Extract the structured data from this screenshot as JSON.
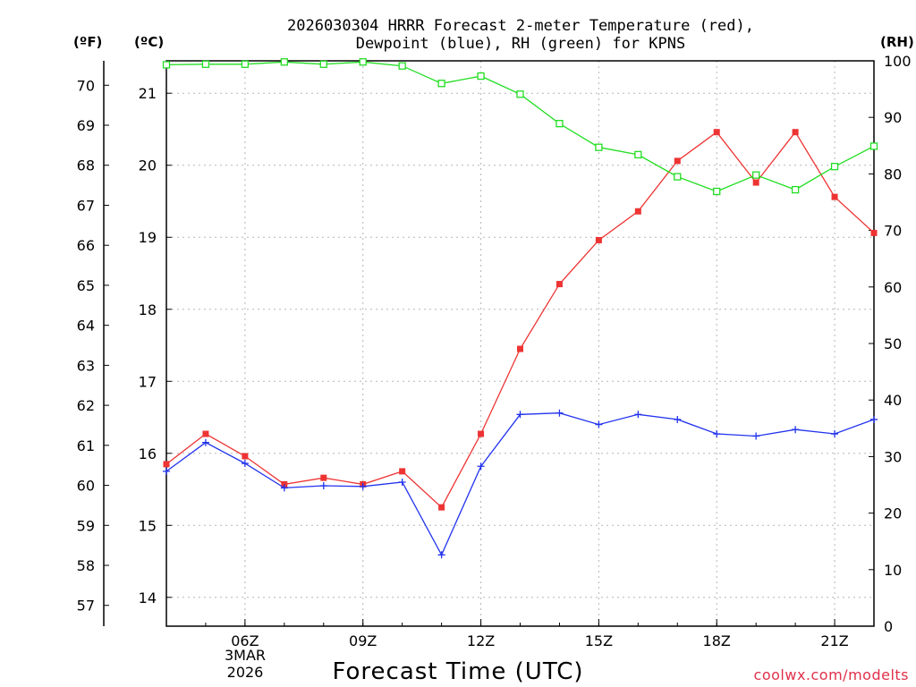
{
  "title_line1": "2026030304 HRRR Forecast 2-meter Temperature (red),",
  "title_line2": "Dewpoint (blue), RH (green) for KPNS",
  "axis_unit_f": "(ºF)",
  "axis_unit_c": "(ºC)",
  "axis_unit_rh": "(RH)",
  "xlabel": "Forecast Time (UTC)",
  "credit": "coolwx.com/modelts",
  "date_label_line1": "3MAR",
  "date_label_line2": "2026",
  "colors": {
    "temperature": "#ee3333",
    "dewpoint": "#2233ee",
    "rh": "#22dd22",
    "grid": "#b5b5b5"
  },
  "chart_data": {
    "type": "line",
    "title": "2026030304 HRRR Forecast 2-meter Temperature (red), Dewpoint (blue), RH (green) for KPNS",
    "xlabel": "Forecast Time (UTC)",
    "x_hours_utc": [
      4,
      5,
      6,
      7,
      8,
      9,
      10,
      11,
      12,
      13,
      14,
      15,
      16,
      17,
      18,
      19,
      20,
      21,
      22
    ],
    "xlim": [
      4,
      22
    ],
    "x_ticks": [
      6,
      9,
      12,
      15,
      18,
      21
    ],
    "x_tick_labels": [
      "06Z",
      "09Z",
      "12Z",
      "15Z",
      "18Z",
      "21Z"
    ],
    "y_left_f_ticks": [
      57,
      58,
      59,
      60,
      61,
      62,
      63,
      64,
      65,
      66,
      67,
      68,
      69,
      70
    ],
    "y_left_c_ticks": [
      14,
      15,
      16,
      17,
      18,
      19,
      20,
      21
    ],
    "y_left_c_range": [
      13.6,
      21.45
    ],
    "y_right_rh_ticks": [
      0,
      10,
      20,
      30,
      40,
      50,
      60,
      70,
      80,
      90,
      100
    ],
    "y_right_rh_range": [
      0,
      100
    ],
    "grid": true,
    "series": [
      {
        "name": "Temperature",
        "unit": "C",
        "color": "#ee3333",
        "marker": "filled-square",
        "values": [
          15.85,
          16.27,
          15.96,
          15.57,
          15.66,
          15.57,
          15.75,
          15.25,
          16.27,
          17.45,
          18.35,
          18.96,
          19.36,
          20.06,
          20.46,
          19.76,
          20.46,
          19.56,
          19.06
        ]
      },
      {
        "name": "Dewpoint",
        "unit": "C",
        "color": "#2233ee",
        "marker": "plus",
        "values": [
          15.75,
          16.15,
          15.86,
          15.52,
          15.55,
          15.54,
          15.6,
          14.59,
          15.82,
          16.54,
          16.56,
          16.4,
          16.54,
          16.47,
          16.27,
          16.24,
          16.33,
          16.27,
          16.47
        ]
      },
      {
        "name": "RH",
        "unit": "%",
        "color": "#22dd22",
        "marker": "open-square",
        "values": [
          99.3,
          99.4,
          99.4,
          99.8,
          99.4,
          99.8,
          99.1,
          96.0,
          97.3,
          94.1,
          88.9,
          84.7,
          83.4,
          79.5,
          76.9,
          79.8,
          77.2,
          81.3,
          84.9
        ]
      }
    ]
  }
}
